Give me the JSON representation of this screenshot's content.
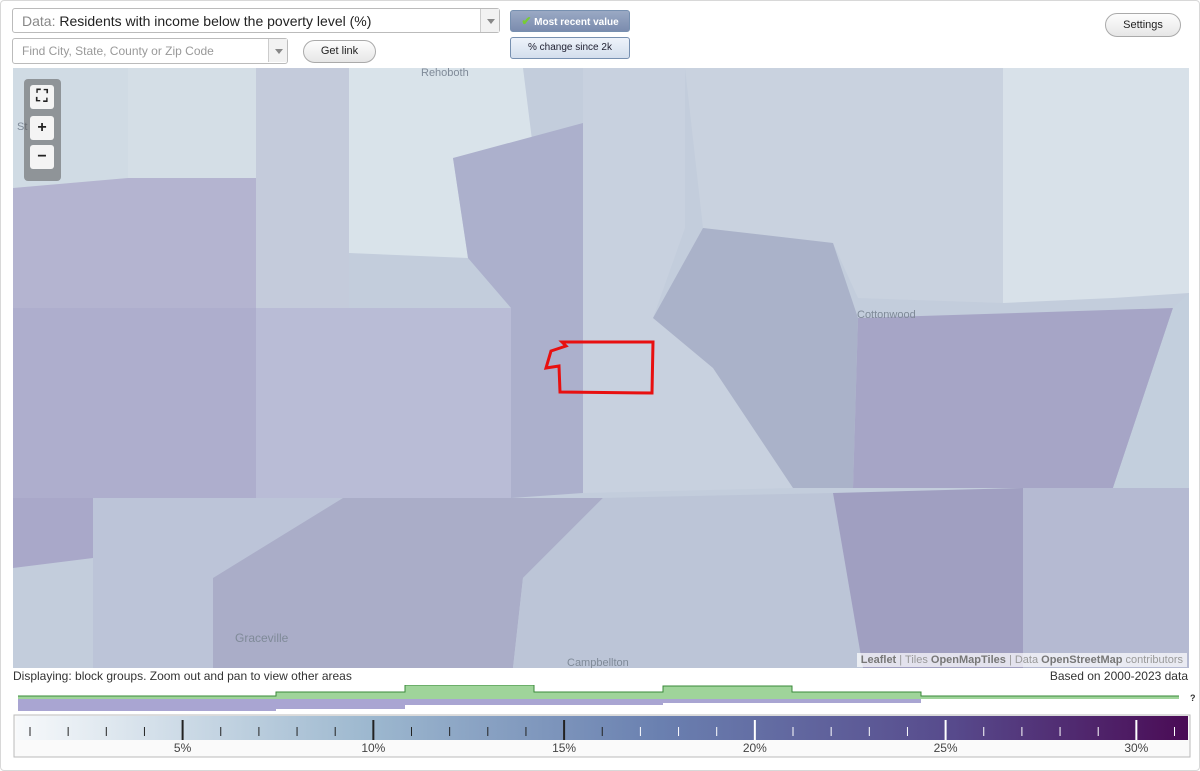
{
  "toolbar": {
    "data_label": "Data:",
    "data_value": "Residents with income below the poverty level (%)",
    "search_placeholder": "Find City, State, County or Zip Code",
    "get_link": "Get link",
    "most_recent": "Most recent value",
    "pct_change": "% change since 2k",
    "settings": "Settings"
  },
  "map": {
    "places": [
      "Rehoboth",
      "St",
      "Cottonwood",
      "Graceville",
      "Campbellton"
    ],
    "attribution": {
      "leaflet": "Leaflet",
      "tiles": "| Tiles",
      "tiles_src": "OpenMapTiles",
      "data": "| Data",
      "data_src": "OpenStreetMap",
      "contributors": "contributors"
    }
  },
  "status": {
    "displaying": "Displaying: block groups. Zoom out and pan to view other areas",
    "based_on": "Based on 2000-2023 data"
  },
  "legend": {
    "ticks": [
      "5%",
      "10%",
      "15%",
      "20%",
      "25%",
      "30%"
    ],
    "help": "?"
  }
}
